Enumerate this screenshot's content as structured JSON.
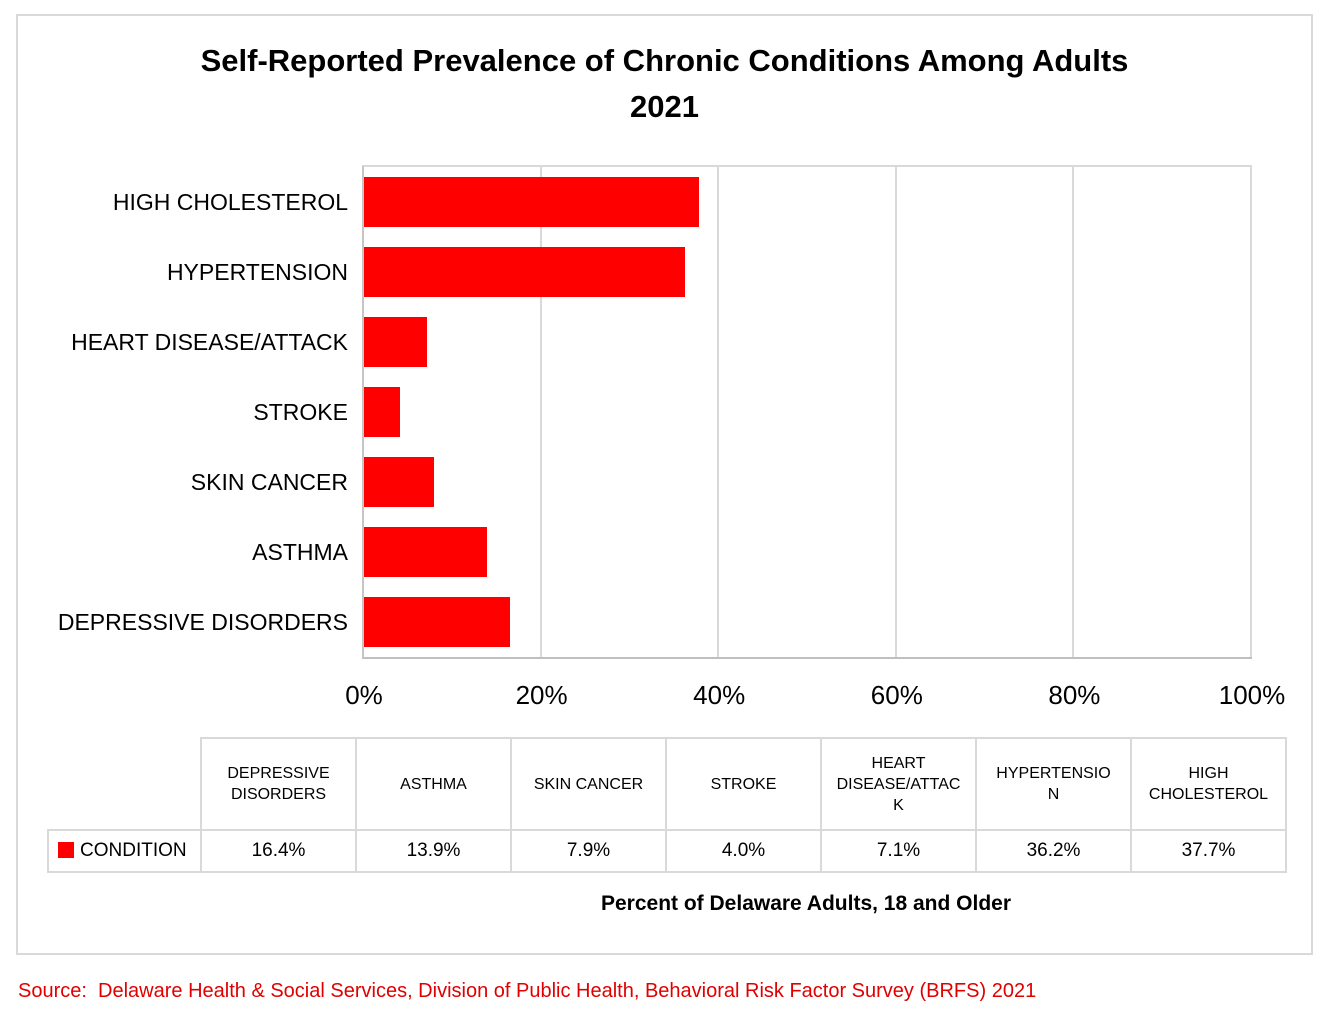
{
  "figure": {
    "source_note": "Source:  Delaware Health & Social Services, Division of Public Health, Behavioral Risk Factor Survey (BRFS) 2021"
  },
  "colors": {
    "bar": "#ff0000",
    "source_text": "#e00000",
    "gridline": "#d9d9d9",
    "axis_line": "#bfbfbf",
    "figure_border": "#d9d9d9",
    "table_border": "#d9d9d9"
  },
  "chart_data": {
    "type": "bar",
    "orientation": "horizontal",
    "title": "Self-Reported Prevalence of Chronic Conditions Among Adults",
    "subtitle": "2021",
    "xlabel": "Percent of Delaware Adults, 18 and Older",
    "xlim": [
      0,
      100
    ],
    "x_ticks": [
      "0%",
      "20%",
      "40%",
      "60%",
      "80%",
      "100%"
    ],
    "grid": true,
    "series_name": "CONDITION",
    "bars": [
      {
        "category": "HIGH CHOLESTEROL",
        "value": 37.7,
        "label": "37.7%"
      },
      {
        "category": "HYPERTENSION",
        "value": 36.2,
        "label": "36.2%"
      },
      {
        "category": "HEART DISEASE/ATTACK",
        "value": 7.1,
        "label": "7.1%"
      },
      {
        "category": "STROKE",
        "value": 4.0,
        "label": "4.0%"
      },
      {
        "category": "SKIN CANCER",
        "value": 7.9,
        "label": "7.9%"
      },
      {
        "category": "ASTHMA",
        "value": 13.9,
        "label": "13.9%"
      },
      {
        "category": "DEPRESSIVE DISORDERS",
        "value": 16.4,
        "label": "16.4%"
      }
    ],
    "table": {
      "legend_label": "CONDITION",
      "columns": [
        "DEPRESSIVE DISORDERS",
        "ASTHMA",
        "SKIN CANCER",
        "STROKE",
        "HEART DISEASE/ATTACK",
        "HYPERTENSION",
        "HIGH CHOLESTEROL"
      ],
      "values": [
        "16.4%",
        "13.9%",
        "7.9%",
        "4.0%",
        "7.1%",
        "36.2%",
        "37.7%"
      ]
    },
    "legend_position": "table-left"
  }
}
